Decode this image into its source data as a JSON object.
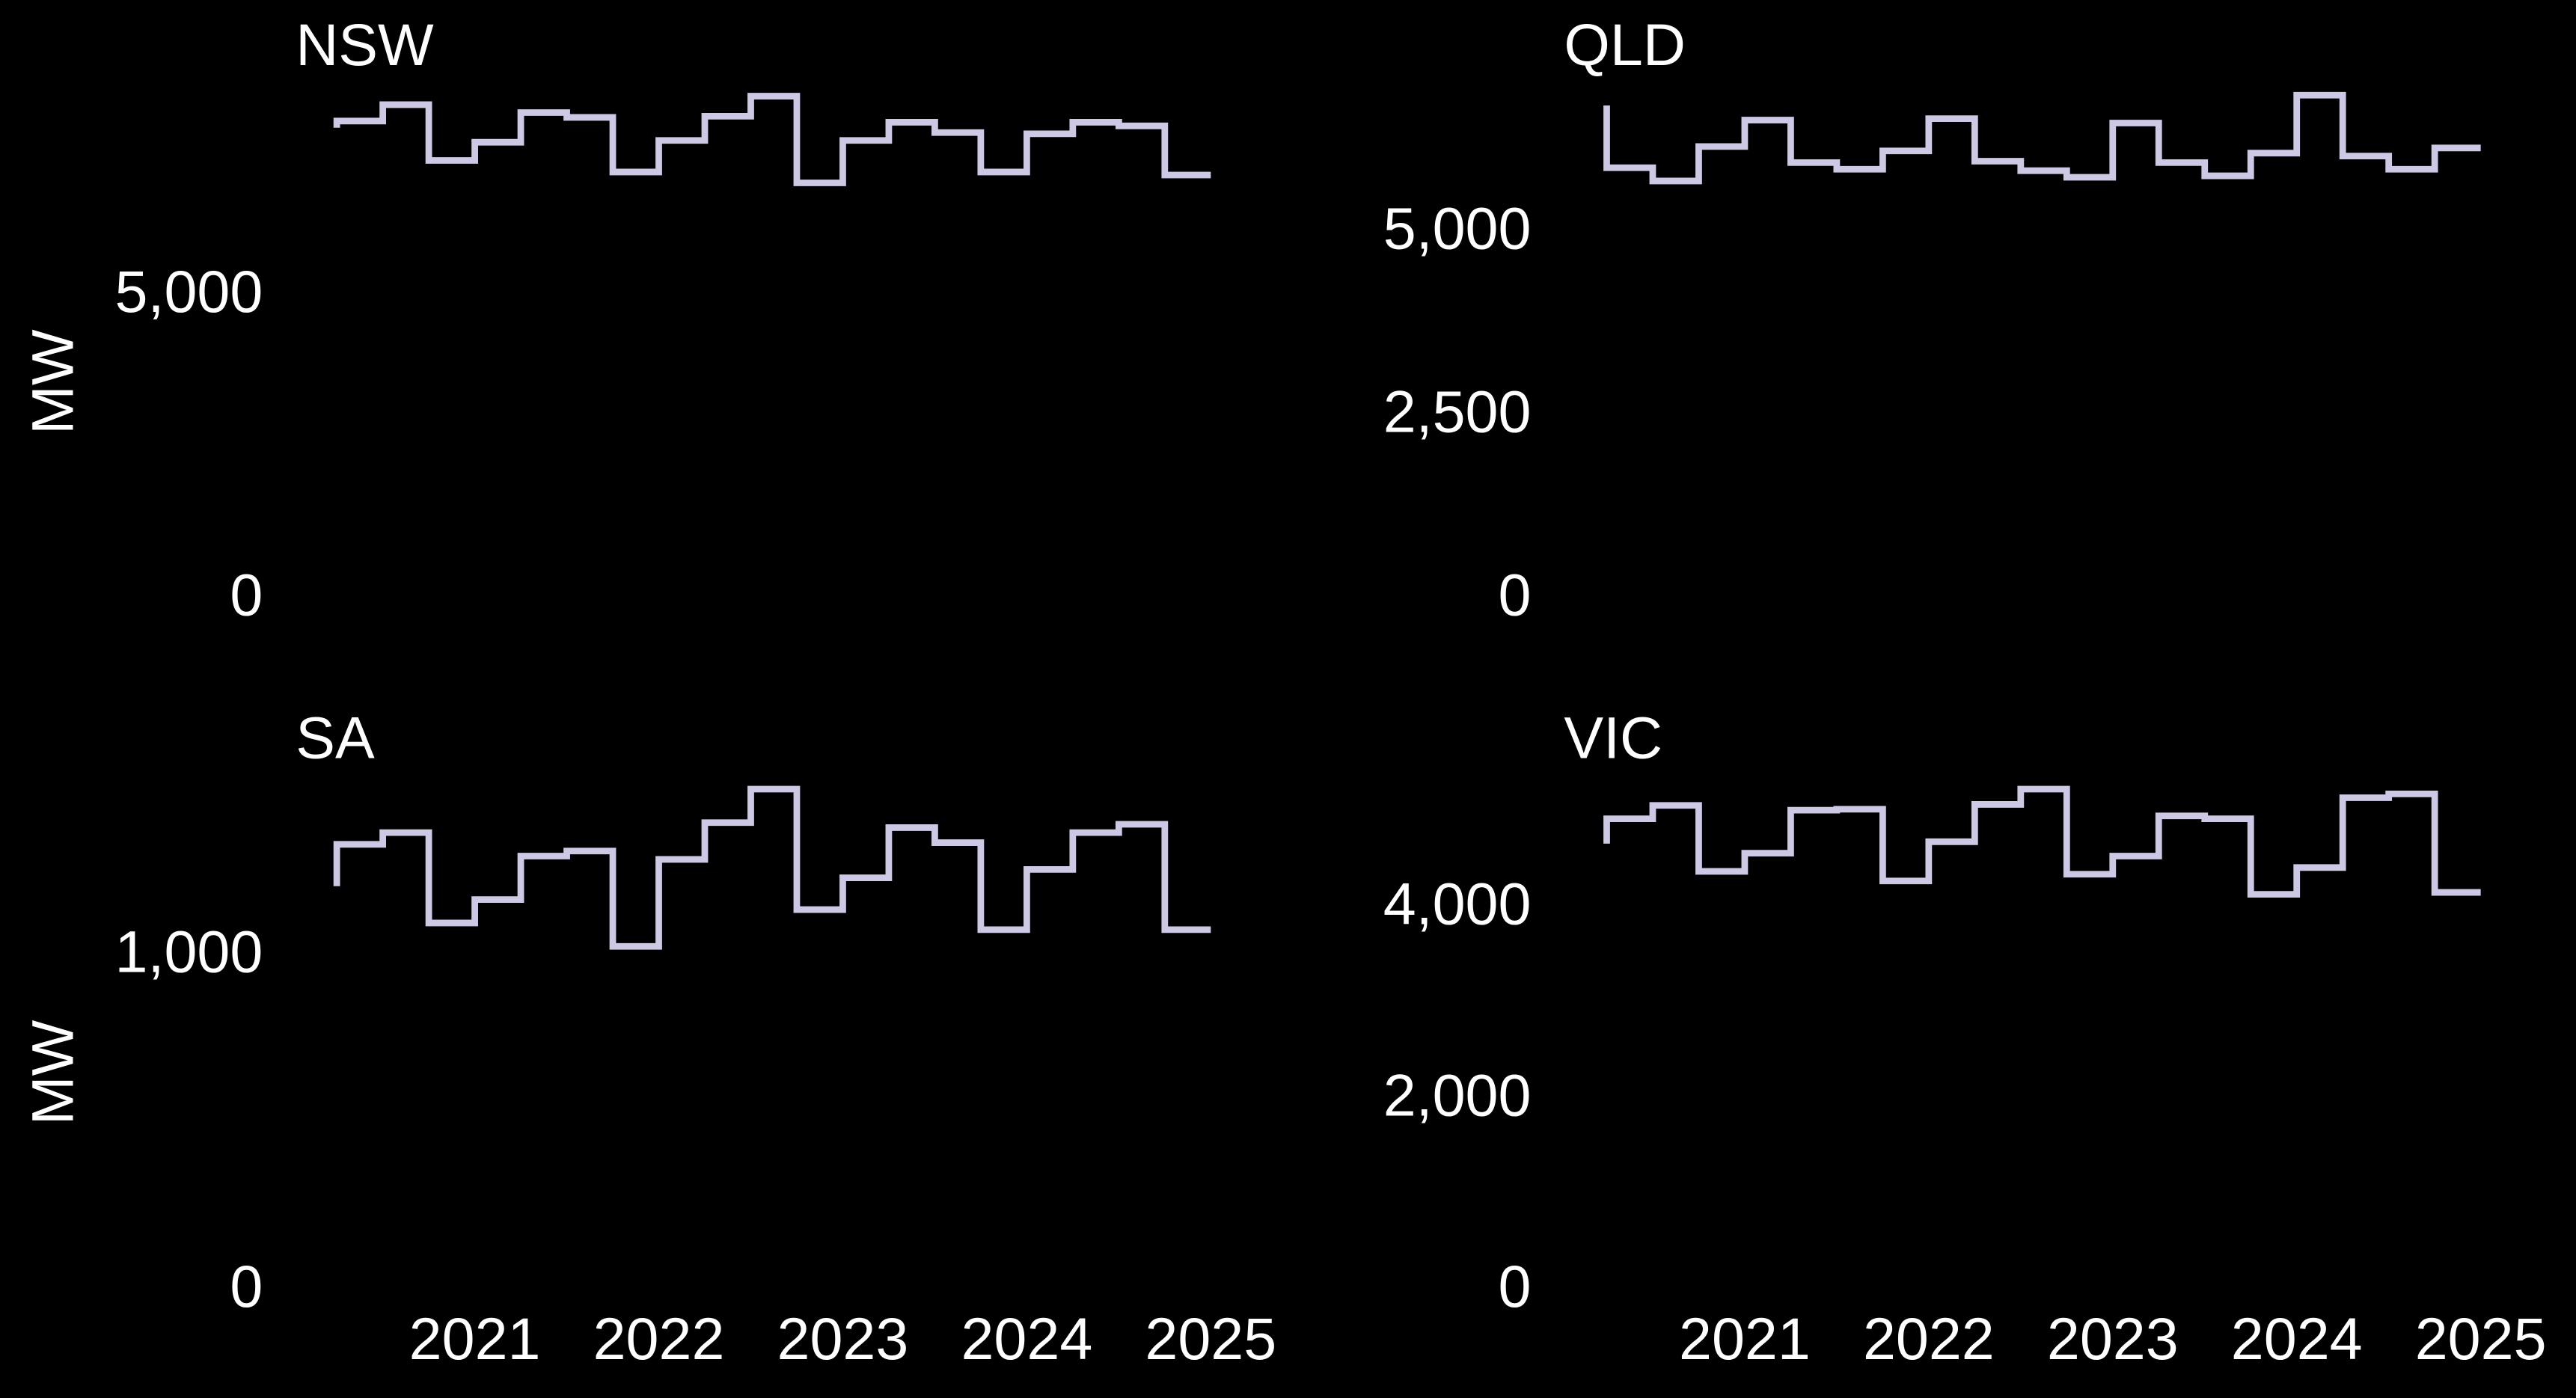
{
  "chart_data": [
    {
      "type": "line",
      "title": "NSW",
      "ylabel": "MW",
      "color": "#cdc8e4",
      "x": [
        2020.25,
        2020.5,
        2020.75,
        2021,
        2021.25,
        2021.5,
        2021.75,
        2022,
        2022.25,
        2022.5,
        2022.75,
        2023,
        2023.25,
        2023.5,
        2023.75,
        2024,
        2024.25,
        2024.5,
        2024.75,
        2025
      ],
      "values": [
        7780,
        7890,
        8160,
        7240,
        7540,
        8030,
        7950,
        7050,
        7570,
        7970,
        8300,
        6870,
        7570,
        7870,
        7700,
        7050,
        7680,
        7870,
        7810,
        7000
      ],
      "xlim": [
        2020.1,
        2025.3
      ],
      "ylim": [
        0,
        8800
      ],
      "yticks": [
        0,
        {
          "value": 5000,
          "label": "5,000"
        }
      ]
    },
    {
      "type": "line",
      "title": "QLD",
      "color": "#cdc8e4",
      "x": [
        2020.25,
        2020.5,
        2020.75,
        2021,
        2021.25,
        2021.5,
        2021.75,
        2022,
        2022.25,
        2022.5,
        2022.75,
        2023,
        2023.25,
        2023.5,
        2023.75,
        2024,
        2024.25,
        2024.5,
        2024.75,
        2025
      ],
      "values": [
        6740,
        5890,
        5710,
        6180,
        6540,
        5960,
        5870,
        6120,
        6560,
        5980,
        5850,
        5760,
        6500,
        5960,
        5780,
        6090,
        6880,
        6050,
        5870,
        6160
      ],
      "xlim": [
        2020.1,
        2025.3
      ],
      "ylim": [
        0,
        7280
      ],
      "yticks": [
        0,
        {
          "value": 2500,
          "label": "2,500"
        },
        {
          "value": 5000,
          "label": "5,000"
        }
      ]
    },
    {
      "type": "line",
      "title": "SA",
      "ylabel": "MW",
      "color": "#cdc8e4",
      "x": [
        2020.25,
        2020.5,
        2020.75,
        2021,
        2021.25,
        2021.5,
        2021.75,
        2022,
        2022.25,
        2022.5,
        2022.75,
        2023,
        2023.25,
        2023.5,
        2023.75,
        2024,
        2024.25,
        2024.5,
        2024.75,
        2025
      ],
      "values": [
        1210,
        1335,
        1370,
        1100,
        1170,
        1300,
        1315,
        1030,
        1290,
        1400,
        1500,
        1140,
        1235,
        1385,
        1340,
        1080,
        1260,
        1370,
        1395,
        1080
      ],
      "xlim": [
        2020.1,
        2025.3
      ],
      "ylim": [
        0,
        1600
      ],
      "yticks": [
        0,
        {
          "value": 1000,
          "label": "1,000"
        }
      ],
      "xticks": [
        2021,
        2022,
        2023,
        2024,
        2025
      ]
    },
    {
      "type": "line",
      "title": "VIC",
      "color": "#cdc8e4",
      "x": [
        2020.25,
        2020.5,
        2020.75,
        2021,
        2021.25,
        2021.5,
        2021.75,
        2022,
        2022.25,
        2022.5,
        2022.75,
        2023,
        2023.25,
        2023.5,
        2023.75,
        2024,
        2024.25,
        2024.5,
        2024.75,
        2025
      ],
      "values": [
        4680,
        4940,
        5080,
        4390,
        4580,
        5030,
        5040,
        4290,
        4700,
        5090,
        5250,
        4360,
        4550,
        4970,
        4940,
        4150,
        4430,
        5160,
        5200,
        4170
      ],
      "xlim": [
        2020.1,
        2025.3
      ],
      "ylim": [
        0,
        5600
      ],
      "yticks": [
        0,
        {
          "value": 2000,
          "label": "2,000"
        },
        {
          "value": 4000,
          "label": "4,000"
        }
      ],
      "xticks": [
        2021,
        2022,
        2023,
        2024,
        2025
      ]
    }
  ]
}
